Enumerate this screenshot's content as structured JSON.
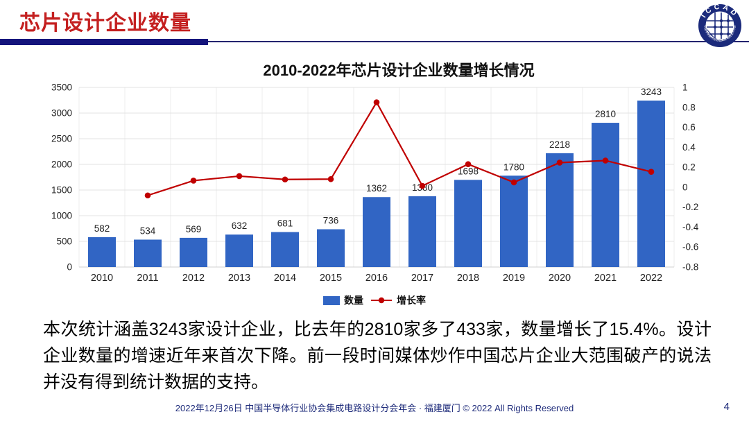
{
  "header": {
    "title": "芯片设计企业数量",
    "logo_text": "ICCAD",
    "logo_ring_text": "中国半导体行业协会集成电路设计分会",
    "accent_red": "#C42020",
    "accent_navy": "#14147C"
  },
  "chart_data": {
    "type": "bar+line",
    "title": "2010-2022年芯片设计企业数量增长情况",
    "categories": [
      "2010",
      "2011",
      "2012",
      "2013",
      "2014",
      "2015",
      "2016",
      "2017",
      "2018",
      "2019",
      "2020",
      "2021",
      "2022"
    ],
    "series": [
      {
        "name": "数量",
        "type": "bar",
        "axis": "left",
        "color": "#3165C4",
        "values": [
          582,
          534,
          569,
          632,
          681,
          736,
          1362,
          1380,
          1698,
          1780,
          2218,
          2810,
          3243
        ]
      },
      {
        "name": "增长率",
        "type": "line",
        "axis": "right",
        "color": "#C00000",
        "values": [
          null,
          -0.0825,
          0.0655,
          0.1107,
          0.0775,
          0.0808,
          0.8505,
          0.0132,
          0.2304,
          0.0483,
          0.2461,
          0.2669,
          0.1541
        ]
      }
    ],
    "left_axis": {
      "min": 0,
      "max": 3500,
      "step": 500,
      "ticks": [
        "0",
        "500",
        "1000",
        "1500",
        "2000",
        "2500",
        "3000",
        "3500"
      ]
    },
    "right_axis": {
      "min": -0.8,
      "max": 1,
      "step": 0.2,
      "ticks": [
        "-0.8",
        "-0.6",
        "-0.4",
        "-0.2",
        "0",
        "0.2",
        "0.4",
        "0.6",
        "0.8",
        "1"
      ]
    },
    "grid": true,
    "legend_position": "bottom"
  },
  "body": {
    "paragraph": "本次统计涵盖3243家设计企业，比去年的2810家多了433家，数量增长了15.4%。设计企业数量的增速近年来首次下降。前一段时间媒体炒作中国芯片企业大范围破产的说法并没有得到统计数据的支持。"
  },
  "footer": {
    "text": "2022年12月26日 中国半导体行业协会集成电路设计分会年会 · 福建厦门 © 2022 All Rights Reserved",
    "page": "4"
  }
}
